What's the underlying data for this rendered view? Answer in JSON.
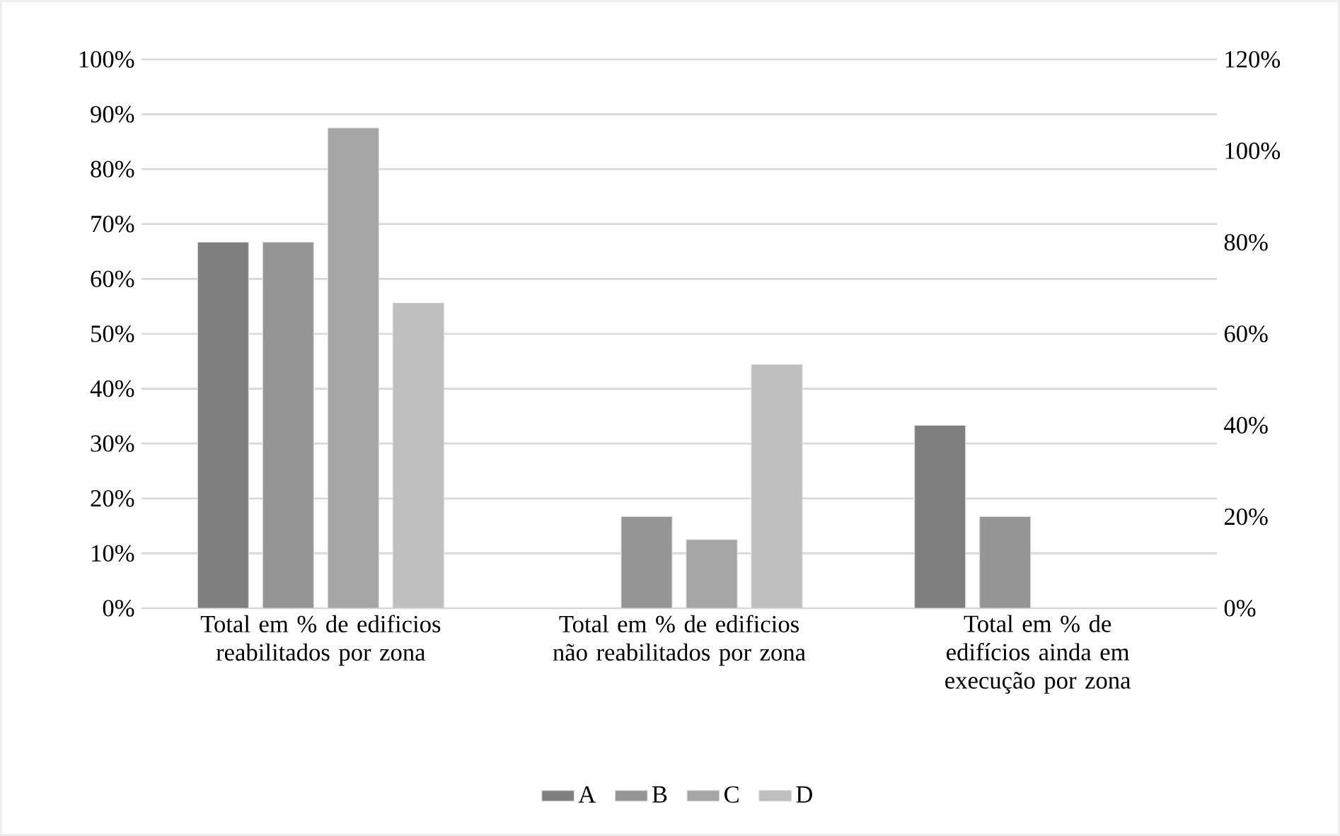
{
  "chart_data": {
    "type": "bar",
    "categories": [
      "Total em % de edificios reabilitados por zona",
      "Total em % de edificios não reabilitados por zona",
      "Total em % de edifícios ainda em execução por zona"
    ],
    "series": [
      {
        "name": "A",
        "color": "#7f7f7f",
        "values": [
          66.7,
          null,
          33.3
        ]
      },
      {
        "name": "B",
        "color": "#959595",
        "values": [
          66.7,
          16.7,
          16.7
        ]
      },
      {
        "name": "C",
        "color": "#a5a5a5",
        "values": [
          87.5,
          12.5,
          null
        ]
      },
      {
        "name": "D",
        "color": "#bfbfbf",
        "values": [
          55.6,
          44.4,
          null
        ]
      }
    ],
    "ylim": [
      0,
      100
    ],
    "yticks": [
      {
        "value": 0,
        "label": "0%"
      },
      {
        "value": 10,
        "label": "10%"
      },
      {
        "value": 20,
        "label": "20%"
      },
      {
        "value": 30,
        "label": "30%"
      },
      {
        "value": 40,
        "label": "40%"
      },
      {
        "value": 50,
        "label": "50%"
      },
      {
        "value": 60,
        "label": "60%"
      },
      {
        "value": 70,
        "label": "70%"
      },
      {
        "value": 80,
        "label": "80%"
      },
      {
        "value": 90,
        "label": "90%"
      },
      {
        "value": 100,
        "label": "100%"
      }
    ],
    "y2lim": [
      0,
      120
    ],
    "y2ticks": [
      {
        "value": 0,
        "label": "0%"
      },
      {
        "value": 20,
        "label": "20%"
      },
      {
        "value": 40,
        "label": "40%"
      },
      {
        "value": 60,
        "label": "60%"
      },
      {
        "value": 80,
        "label": "80%"
      },
      {
        "value": 100,
        "label": "100%"
      },
      {
        "value": 120,
        "label": "120%"
      }
    ],
    "grid": "y",
    "legend": "bottom"
  }
}
